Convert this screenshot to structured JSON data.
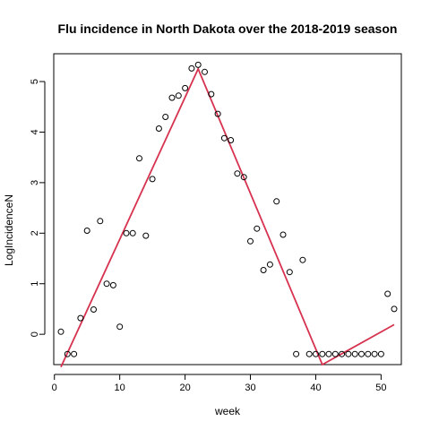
{
  "chart_data": {
    "type": "scatter",
    "title": "Flu incidence in North Dakota over the 2018-2019 season",
    "xlabel": "week",
    "ylabel": "LogIncidenceN",
    "xlim": [
      -0.1,
      53.1
    ],
    "ylim": [
      -0.6,
      5.55
    ],
    "x_ticks": [
      0,
      10,
      20,
      30,
      40,
      50
    ],
    "y_ticks": [
      0,
      1,
      2,
      3,
      4,
      5
    ],
    "grid": false,
    "legend": "none",
    "series": [
      {
        "kind": "points",
        "marker": "open-circle",
        "color": "#000000",
        "x": [
          1,
          2,
          3,
          4,
          5,
          6,
          7,
          8,
          9,
          10,
          11,
          12,
          13,
          14,
          15,
          16,
          17,
          18,
          19,
          20,
          21,
          22,
          23,
          24,
          25,
          26,
          27,
          28,
          29,
          30,
          31,
          32,
          33,
          34,
          35,
          36,
          37,
          38,
          39,
          40,
          41,
          42,
          43,
          44,
          45,
          46,
          47,
          48,
          49,
          50,
          51,
          52
        ],
        "y": [
          0.05,
          -0.39,
          -0.39,
          0.32,
          2.05,
          0.49,
          2.24,
          1.0,
          0.97,
          0.15,
          2.0,
          2.0,
          3.48,
          1.95,
          3.07,
          4.07,
          4.3,
          4.68,
          4.72,
          4.87,
          5.26,
          5.33,
          5.19,
          4.75,
          4.36,
          3.88,
          3.84,
          3.18,
          3.11,
          1.84,
          2.09,
          1.27,
          1.38,
          2.63,
          1.97,
          1.23,
          -0.39,
          1.47,
          -0.39,
          -0.39,
          -0.39,
          -0.39,
          -0.39,
          -0.39,
          -0.39,
          -0.39,
          -0.39,
          -0.39,
          -0.39,
          -0.39,
          0.8,
          0.5
        ]
      },
      {
        "kind": "line",
        "color": "#d7324f",
        "x": [
          1,
          22,
          41,
          52
        ],
        "y": [
          -0.65,
          5.25,
          -0.6,
          0.19
        ]
      }
    ]
  }
}
